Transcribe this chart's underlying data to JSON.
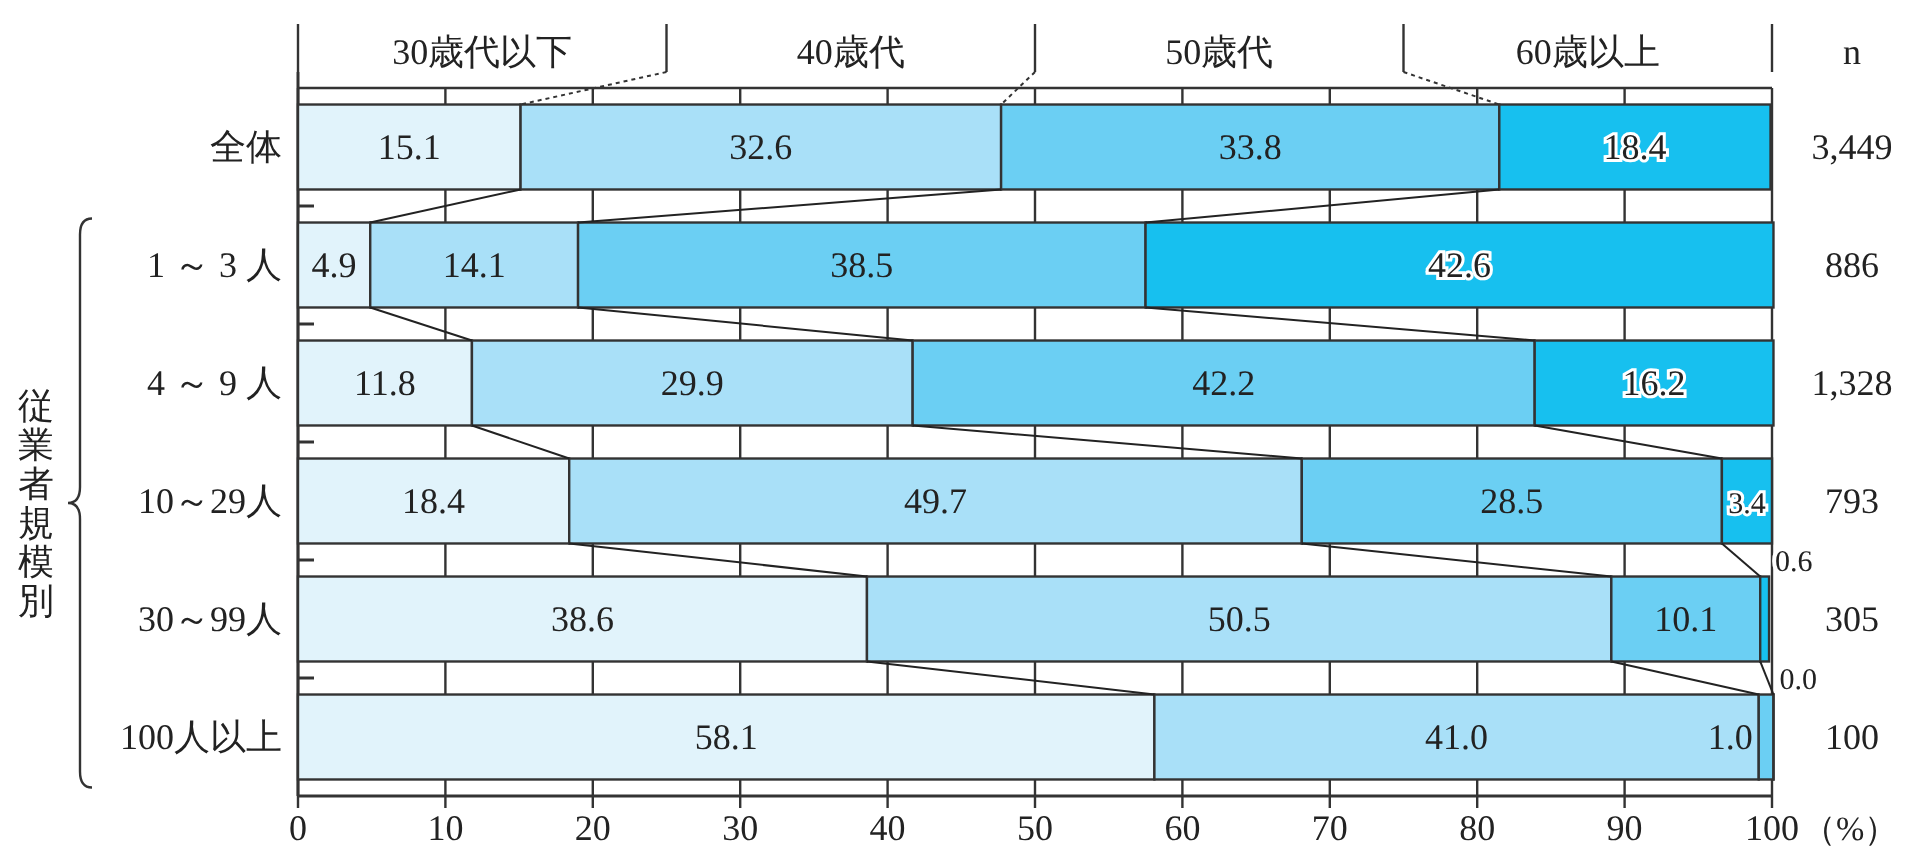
{
  "chart_data": {
    "type": "bar",
    "orientation": "horizontal",
    "stacked": true,
    "categories": [
      "全体",
      "1 ～ 3 人",
      "4 ～ 9 人",
      "10～29人",
      "30～99人",
      "100人以上"
    ],
    "series": [
      {
        "name": "30歳代以下",
        "color": "#e1f3fb",
        "values": [
          15.1,
          4.9,
          11.8,
          18.4,
          38.6,
          58.1
        ],
        "value_labels": [
          "15.1",
          "4.9",
          "11.8",
          "18.4",
          "38.6",
          "58.1"
        ]
      },
      {
        "name": "40歳代",
        "color": "#a9e0f8",
        "values": [
          32.6,
          14.1,
          29.9,
          49.7,
          50.5,
          41.0
        ],
        "value_labels": [
          "32.6",
          "14.1",
          "29.9",
          "49.7",
          "50.5",
          "41.0"
        ]
      },
      {
        "name": "50歳代",
        "color": "#6bcff3",
        "values": [
          33.8,
          38.5,
          42.2,
          28.5,
          10.1,
          1.0
        ],
        "value_labels": [
          "33.8",
          "38.5",
          "42.2",
          "28.5",
          "10.1",
          "1.0"
        ]
      },
      {
        "name": "60歳以上",
        "color": "#17c0ef",
        "values": [
          18.4,
          42.6,
          16.2,
          3.4,
          0.6,
          0.0
        ],
        "value_labels": [
          "18.4",
          "42.6",
          "16.2",
          "3.4",
          "0.6",
          "0.0"
        ]
      }
    ],
    "xlim": [
      0,
      100
    ],
    "xticks": [
      0,
      10,
      20,
      30,
      40,
      50,
      60,
      70,
      80,
      90,
      100
    ],
    "xlabel": "（%）",
    "ylabel": "従業者規模別",
    "grid": "x",
    "legend": "top",
    "annotations": [
      "n",
      "3,449",
      "886",
      "1,328",
      "793",
      "305",
      "100"
    ]
  }
}
